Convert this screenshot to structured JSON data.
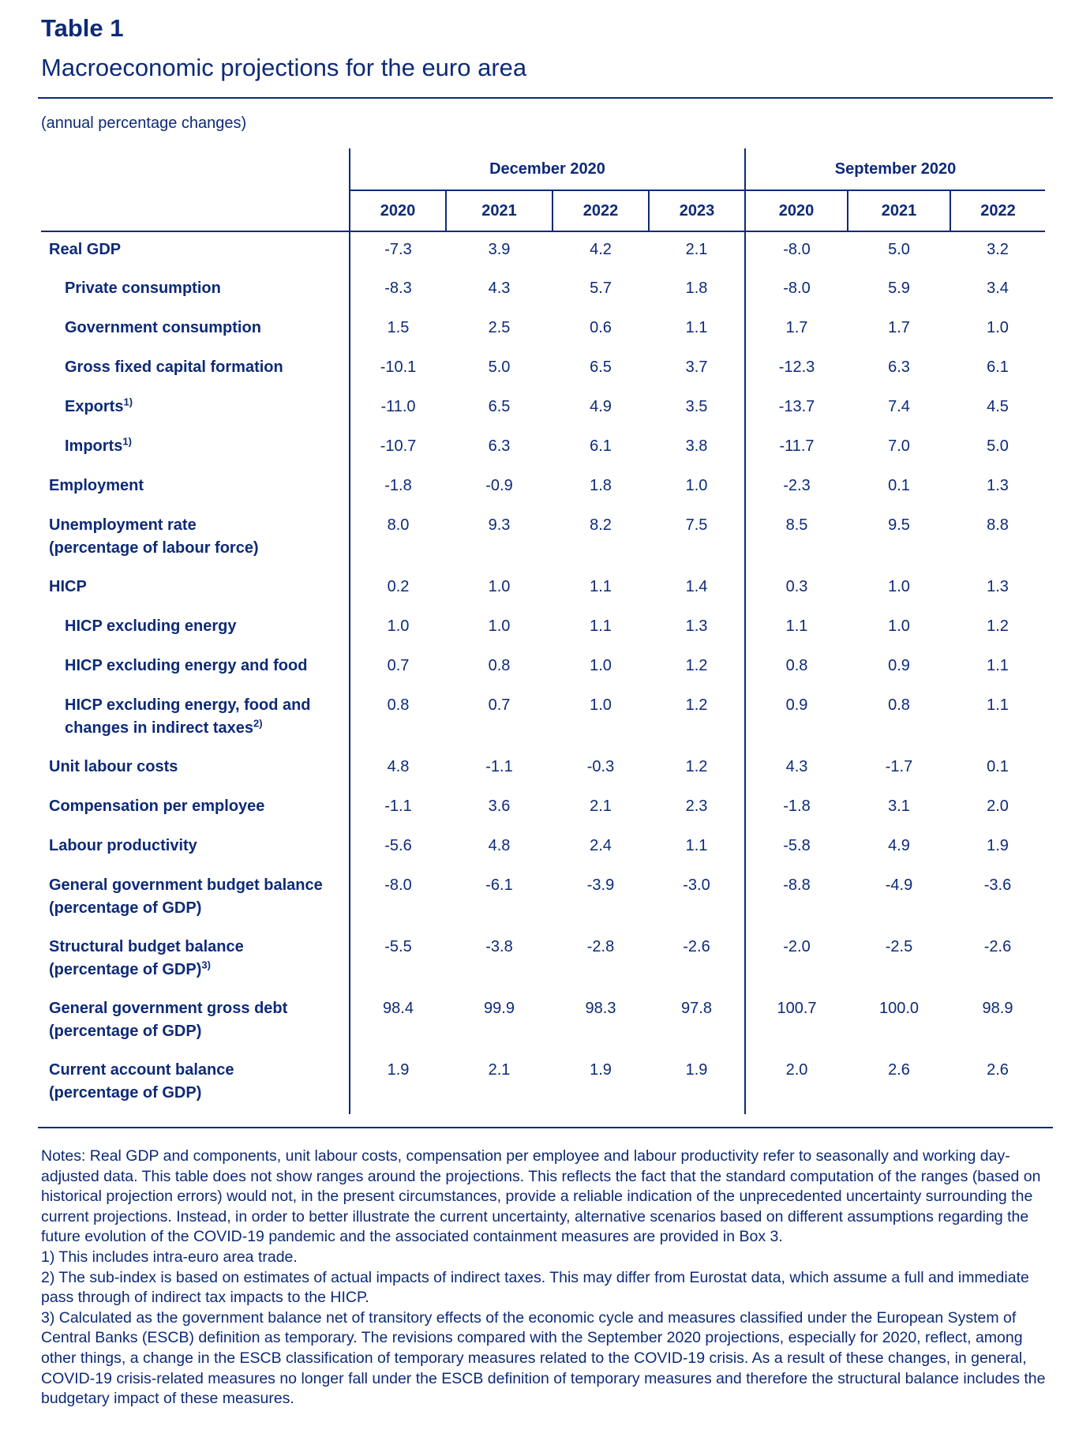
{
  "title": "Table 1",
  "subtitle": "Macroeconomic projections for the euro area",
  "units": "(annual percentage changes)",
  "groups": [
    "December 2020",
    "September 2020"
  ],
  "years": [
    "2020",
    "2021",
    "2022",
    "2023",
    "2020",
    "2021",
    "2022"
  ],
  "rows": [
    {
      "label": "Real GDP",
      "values": [
        "-7.3",
        "3.9",
        "4.2",
        "2.1",
        "-8.0",
        "5.0",
        "3.2"
      ]
    },
    {
      "label": "Private consumption",
      "values": [
        "-8.3",
        "4.3",
        "5.7",
        "1.8",
        "-8.0",
        "5.9",
        "3.4"
      ]
    },
    {
      "label": "Government consumption",
      "values": [
        "1.5",
        "2.5",
        "0.6",
        "1.1",
        "1.7",
        "1.7",
        "1.0"
      ]
    },
    {
      "label": "Gross fixed capital formation",
      "values": [
        "-10.1",
        "5.0",
        "6.5",
        "3.7",
        "-12.3",
        "6.3",
        "6.1"
      ]
    },
    {
      "label": "Exports",
      "sup": "1)",
      "values": [
        "-11.0",
        "6.5",
        "4.9",
        "3.5",
        "-13.7",
        "7.4",
        "4.5"
      ]
    },
    {
      "label": "Imports",
      "sup": "1)",
      "values": [
        "-10.7",
        "6.3",
        "6.1",
        "3.8",
        "-11.7",
        "7.0",
        "5.0"
      ]
    },
    {
      "label": "Employment",
      "values": [
        "-1.8",
        "-0.9",
        "1.8",
        "1.0",
        "-2.3",
        "0.1",
        "1.3"
      ]
    },
    {
      "label": "Unemployment rate",
      "label2": "(percentage of labour force)",
      "values": [
        "8.0",
        "9.3",
        "8.2",
        "7.5",
        "8.5",
        "9.5",
        "8.8"
      ]
    },
    {
      "label": "HICP",
      "values": [
        "0.2",
        "1.0",
        "1.1",
        "1.4",
        "0.3",
        "1.0",
        "1.3"
      ]
    },
    {
      "label": "HICP excluding energy",
      "values": [
        "1.0",
        "1.0",
        "1.1",
        "1.3",
        "1.1",
        "1.0",
        "1.2"
      ]
    },
    {
      "label": "HICP excluding energy and food",
      "values": [
        "0.7",
        "0.8",
        "1.0",
        "1.2",
        "0.8",
        "0.9",
        "1.1"
      ]
    },
    {
      "label": "HICP excluding energy, food and",
      "label2": "changes in indirect taxes",
      "sup": "2)",
      "values": [
        "0.8",
        "0.7",
        "1.0",
        "1.2",
        "0.9",
        "0.8",
        "1.1"
      ]
    },
    {
      "label": "Unit labour costs",
      "values": [
        "4.8",
        "-1.1",
        "-0.3",
        "1.2",
        "4.3",
        "-1.7",
        "0.1"
      ]
    },
    {
      "label": "Compensation per employee",
      "values": [
        "-1.1",
        "3.6",
        "2.1",
        "2.3",
        "-1.8",
        "3.1",
        "2.0"
      ]
    },
    {
      "label": "Labour productivity",
      "values": [
        "-5.6",
        "4.8",
        "2.4",
        "1.1",
        "-5.8",
        "4.9",
        "1.9"
      ]
    },
    {
      "label": "General government budget balance",
      "label2": "(percentage of GDP)",
      "values": [
        "-8.0",
        "-6.1",
        "-3.9",
        "-3.0",
        "-8.8",
        "-4.9",
        "-3.6"
      ]
    },
    {
      "label": "Structural budget balance",
      "label2": "(percentage of GDP)",
      "sup": "3)",
      "values": [
        "-5.5",
        "-3.8",
        "-2.8",
        "-2.6",
        "-2.0",
        "-2.5",
        "-2.6"
      ]
    },
    {
      "label": "General government gross debt",
      "label2": "(percentage of GDP)",
      "values": [
        "98.4",
        "99.9",
        "98.3",
        "97.8",
        "100.7",
        "100.0",
        "98.9"
      ]
    },
    {
      "label": "Current account balance",
      "label2": "(percentage of GDP)",
      "values": [
        "1.9",
        "2.1",
        "1.9",
        "1.9",
        "2.0",
        "2.6",
        "2.6"
      ]
    }
  ],
  "notes": [
    "Notes: Real GDP and components, unit labour costs, compensation per employee and labour productivity refer to seasonally and working day-adjusted data. This table does not show ranges around the projections. This reflects the fact that the standard computation of the ranges (based on historical projection errors) would not, in the present circumstances, provide a reliable indication of the unprecedented uncertainty surrounding the current projections. Instead, in order to better illustrate the current uncertainty, alternative scenarios based on different assumptions regarding the future evolution of the COVID-19 pandemic and the associated containment measures are provided in Box 3.",
    "1) This includes intra-euro area trade.",
    "2) The sub-index is based on estimates of actual impacts of indirect taxes. This may differ from Eurostat data, which assume a full and immediate pass through of indirect tax impacts to the HICP.",
    "3) Calculated as the government balance net of transitory effects of the economic cycle and measures classified under the European System of Central Banks (ESCB) definition as temporary. The revisions compared with the September 2020 projections, especially for 2020, reflect, among other things, a change in the ESCB classification of temporary measures related to the COVID-19 crisis. As a result of these changes, in general, COVID-19 crisis-related measures no longer fall under the ESCB definition of temporary measures and therefore the structural balance includes the budgetary impact of these measures."
  ]
}
